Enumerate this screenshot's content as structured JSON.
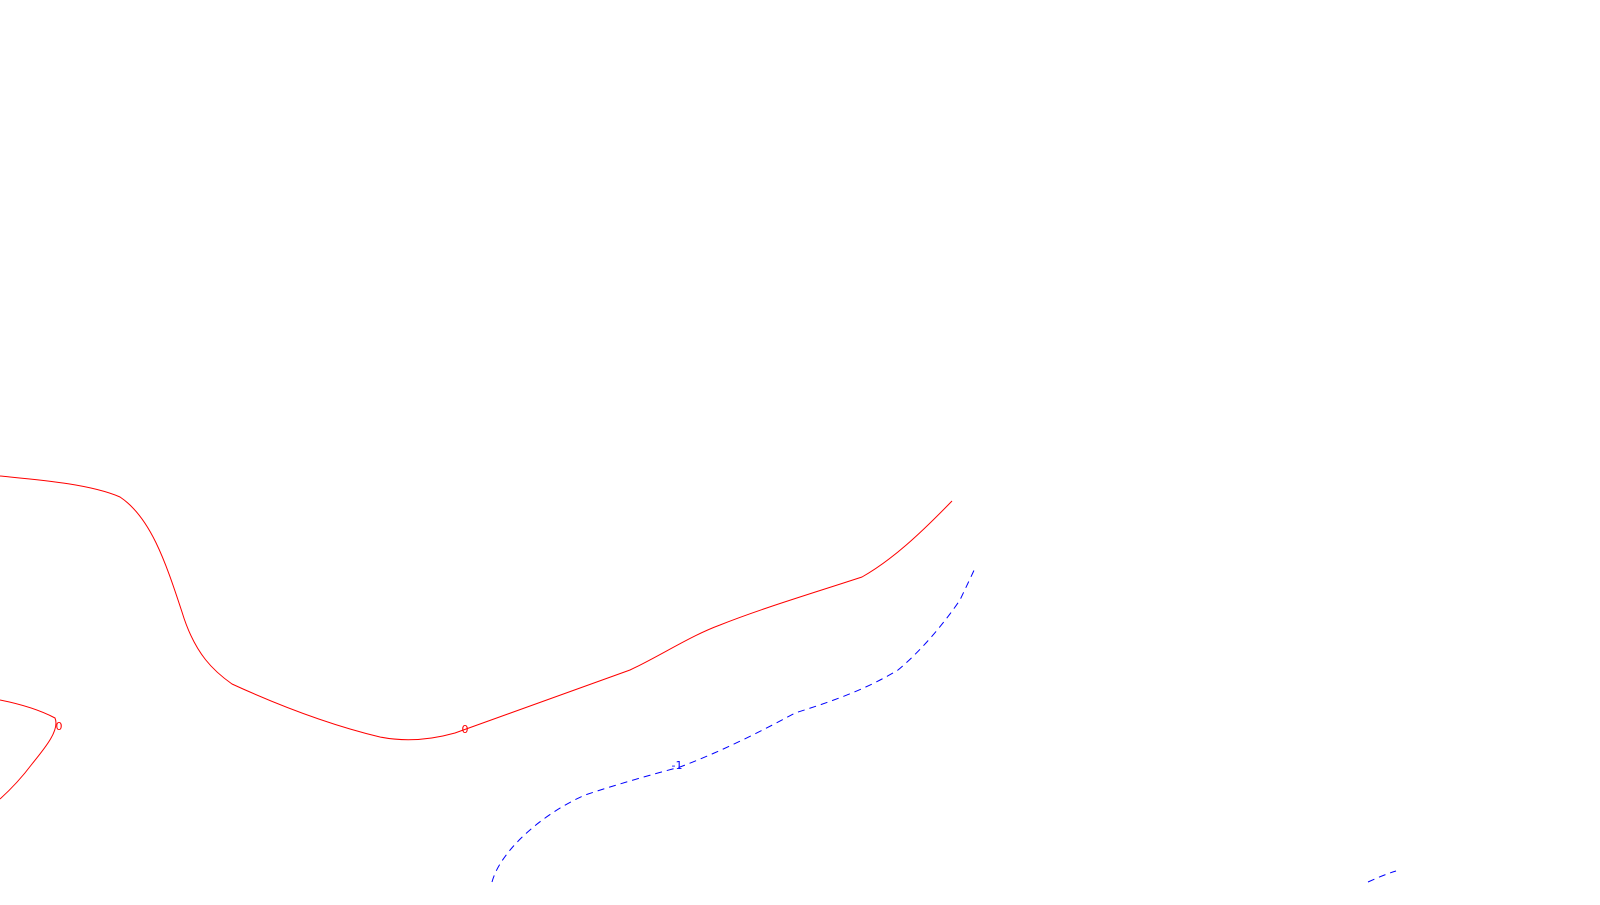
{
  "contours": [
    {
      "level": "0",
      "color": "#ff0000",
      "dashed": false
    },
    {
      "level": "0",
      "color": "#ff0000",
      "dashed": false
    },
    {
      "level": "-1",
      "color": "#0000ff",
      "dashed": true
    },
    {
      "level": "-1",
      "color": "#0000ff",
      "dashed": true
    }
  ],
  "labels": [
    {
      "text": "0",
      "color": "#ff0000"
    },
    {
      "text": "0",
      "color": "#ff0000"
    },
    {
      "text": "-1",
      "color": "#0000ff"
    }
  ]
}
